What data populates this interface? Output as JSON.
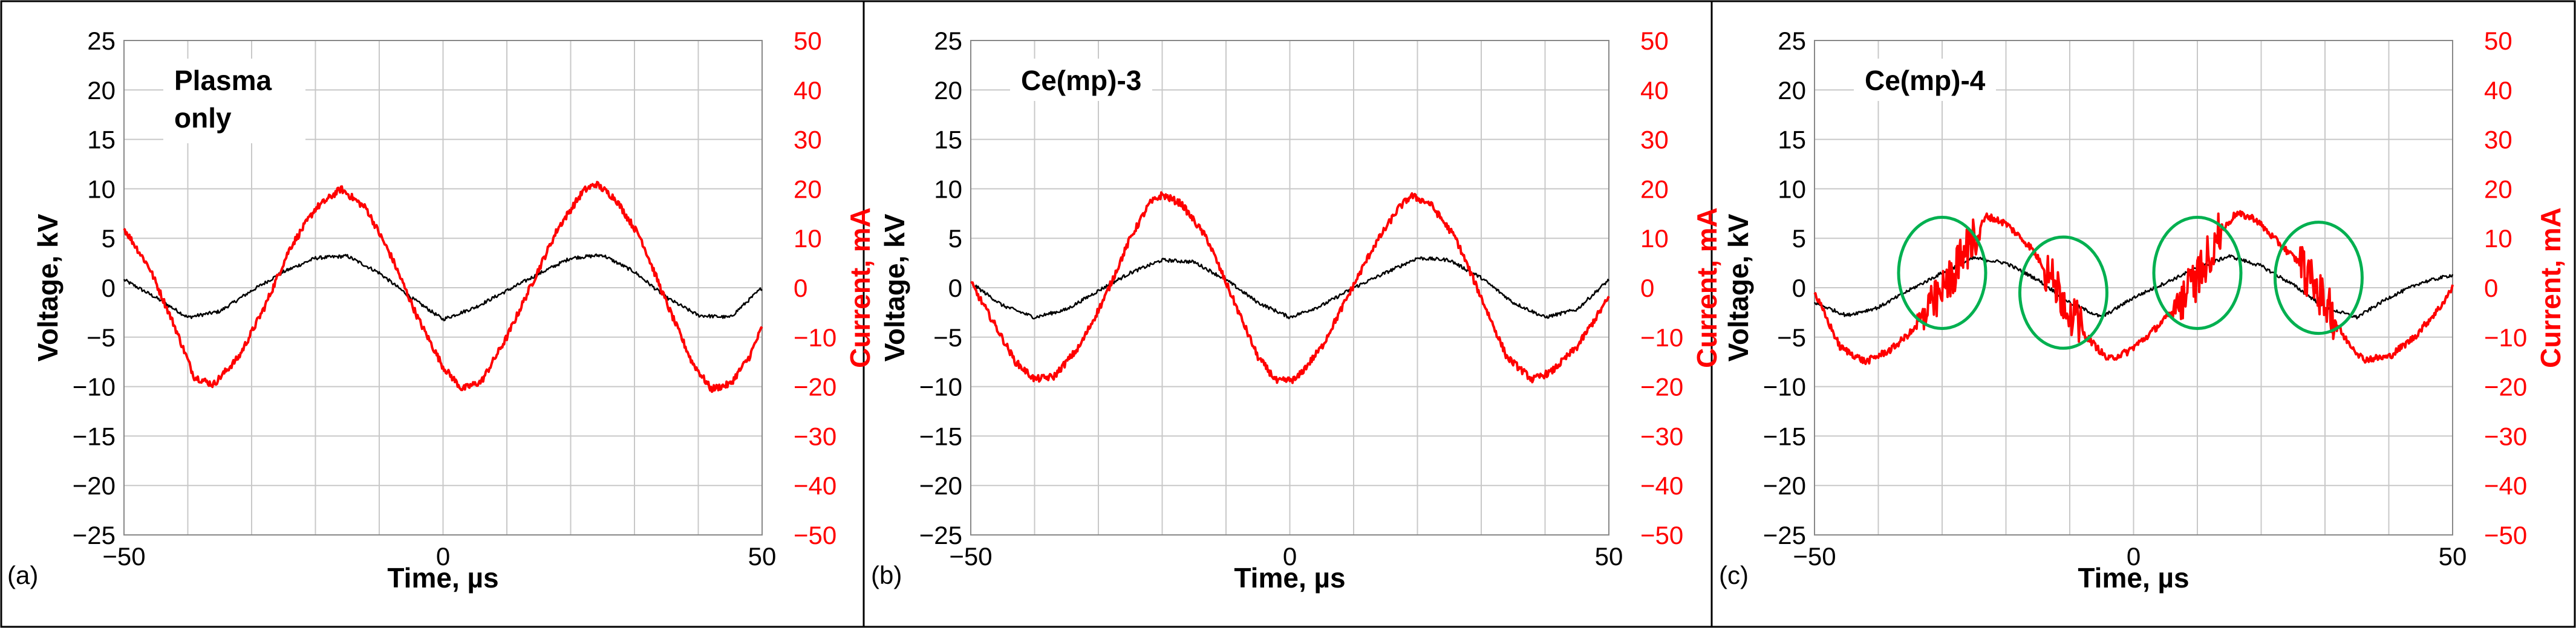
{
  "figure": {
    "panels": [
      {
        "label": "(a)",
        "box_text": [
          "Plasma",
          "only"
        ]
      },
      {
        "label": "(b)",
        "box_text": [
          "Ce(mp)-3"
        ]
      },
      {
        "label": "(c)",
        "box_text": [
          "Ce(mp)-4"
        ]
      }
    ]
  },
  "colors": {
    "voltage": "#000000",
    "current": "#ff0000",
    "grid": "#c8c8c8",
    "circle": "#00b050",
    "frame": "#000000"
  },
  "chart_data": [
    {
      "type": "line",
      "xlabel": "Time, µs",
      "ylabel": "Voltage, kV",
      "y2label": "Current, mA",
      "xlim": [
        -50,
        50
      ],
      "xticks": [
        -50,
        0,
        50
      ],
      "ylim": [
        -25,
        25
      ],
      "yticks": [
        -25,
        -20,
        -15,
        -10,
        -5,
        0,
        5,
        10,
        15,
        20,
        25
      ],
      "y2lim": [
        -50,
        50
      ],
      "y2ticks": [
        -50,
        -40,
        -30,
        -20,
        -10,
        0,
        10,
        20,
        30,
        40,
        50
      ],
      "grid": true,
      "series": [
        {
          "axis": "left",
          "color": "#000000",
          "x": [
            -50,
            -45,
            -40,
            -35,
            -30,
            -25,
            -20,
            -15,
            -10,
            -5,
            0,
            5,
            10,
            15,
            20,
            25,
            30,
            35,
            40,
            45,
            50
          ],
          "y": [
            0.8,
            -1.0,
            -3.0,
            -2.4,
            -0.3,
            1.6,
            3.0,
            3.2,
            1.5,
            -1.0,
            -3.2,
            -2.0,
            -0.3,
            1.4,
            3.0,
            3.3,
            1.6,
            -1.0,
            -2.8,
            -3.0,
            0
          ]
        },
        {
          "axis": "right",
          "color": "#ff0000",
          "x": [
            -50,
            -46,
            -42,
            -39,
            -36,
            -32,
            -28,
            -24,
            -20,
            -16,
            -12,
            -8,
            -4,
            0,
            3,
            6,
            10,
            14,
            18,
            22,
            24,
            27,
            31,
            35,
            39,
            42,
            45,
            48,
            50
          ],
          "y": [
            12,
            4,
            -8,
            -18,
            -19.6,
            -14,
            -4,
            8,
            16,
            20,
            16,
            6,
            -6,
            -16,
            -20.5,
            -19,
            -10,
            1,
            12,
            19.6,
            21,
            18,
            10,
            -3,
            -15,
            -20.5,
            -19.5,
            -14,
            -8
          ]
        }
      ]
    },
    {
      "type": "line",
      "xlabel": "Time, µs",
      "ylabel": "Voltage, kV",
      "y2label": "Current, mA",
      "xlim": [
        -50,
        50
      ],
      "xticks": [
        -50,
        0,
        50
      ],
      "ylim": [
        -25,
        25
      ],
      "yticks": [
        -25,
        -20,
        -15,
        -10,
        -5,
        0,
        5,
        10,
        15,
        20,
        25
      ],
      "y2lim": [
        -50,
        50
      ],
      "y2ticks": [
        -50,
        -40,
        -30,
        -20,
        -10,
        0,
        10,
        20,
        30,
        40,
        50
      ],
      "grid": true,
      "series": [
        {
          "axis": "left",
          "color": "#000000",
          "x": [
            -50,
            -45,
            -40,
            -35,
            -30,
            -25,
            -20,
            -15,
            -10,
            -5,
            0,
            5,
            10,
            15,
            20,
            25,
            30,
            35,
            40,
            45,
            50
          ],
          "y": [
            0.5,
            -1.8,
            -3.0,
            -2.2,
            -0.3,
            1.5,
            2.8,
            2.6,
            0.8,
            -1.5,
            -3.0,
            -1.8,
            0,
            1.5,
            3.0,
            2.8,
            1.0,
            -1.5,
            -3.0,
            -2.2,
            0.8
          ]
        },
        {
          "axis": "right",
          "color": "#ff0000",
          "x": [
            -50,
            -46,
            -43,
            -40,
            -37,
            -33,
            -29,
            -25,
            -22,
            -20,
            -17,
            -13,
            -9,
            -5,
            -2,
            1,
            5,
            9,
            13,
            17,
            19,
            22,
            26,
            30,
            34,
            38,
            41,
            45,
            50
          ],
          "y": [
            1,
            -8,
            -15,
            -18.5,
            -18,
            -12,
            -2,
            10,
            17,
            18.8,
            17,
            10,
            -2,
            -14,
            -19,
            -18.5,
            -12,
            -2,
            8,
            16,
            18.6,
            17,
            10,
            -2,
            -14,
            -18.6,
            -17,
            -12,
            -2
          ]
        }
      ]
    },
    {
      "type": "line",
      "xlabel": "Time, µs",
      "ylabel": "Voltage, kV",
      "y2label": "Current, mA",
      "xlim": [
        -50,
        50
      ],
      "xticks": [
        -50,
        0,
        50
      ],
      "ylim": [
        -25,
        25
      ],
      "yticks": [
        -25,
        -20,
        -15,
        -10,
        -5,
        0,
        5,
        10,
        15,
        20,
        25
      ],
      "y2lim": [
        -50,
        50
      ],
      "y2ticks": [
        -50,
        -40,
        -30,
        -20,
        -10,
        0,
        10,
        20,
        30,
        40,
        50
      ],
      "grid": true,
      "annotations": {
        "circles_at": [
          [
            -30,
            1.5
          ],
          [
            -11,
            -0.5
          ],
          [
            10,
            1.5
          ],
          [
            29,
            1
          ]
        ]
      },
      "series": [
        {
          "axis": "left",
          "color": "#000000",
          "x": [
            -50,
            -45,
            -40,
            -35,
            -30,
            -25,
            -20,
            -15,
            -10,
            -5,
            0,
            5,
            10,
            15,
            20,
            25,
            30,
            35,
            40,
            45,
            50
          ],
          "y": [
            -1.5,
            -2.8,
            -2.0,
            -0.2,
            1.5,
            3.0,
            2.5,
            0.8,
            -1.5,
            -3.0,
            -1.0,
            0.5,
            2.0,
            3.2,
            2.2,
            0.3,
            -2.0,
            -3.0,
            -1.0,
            0.5,
            1.3
          ]
        },
        {
          "axis": "right",
          "color": "#ff0000",
          "x": [
            -50,
            -46,
            -42,
            -38,
            -34,
            -30,
            -26,
            -23,
            -20,
            -16,
            -12,
            -8,
            -4,
            -1,
            2,
            6,
            10,
            13,
            16,
            19,
            22,
            26,
            30,
            33,
            36,
            40,
            44,
            48,
            50
          ],
          "y": [
            -1,
            -12,
            -15,
            -12.5,
            -8,
            -1,
            8,
            14.5,
            13,
            8,
            0,
            -9,
            -14.5,
            -13,
            -10,
            -5,
            2,
            10,
            15,
            14,
            10,
            5,
            -3,
            -10,
            -14.5,
            -14,
            -10,
            -4,
            0
          ]
        }
      ]
    }
  ]
}
